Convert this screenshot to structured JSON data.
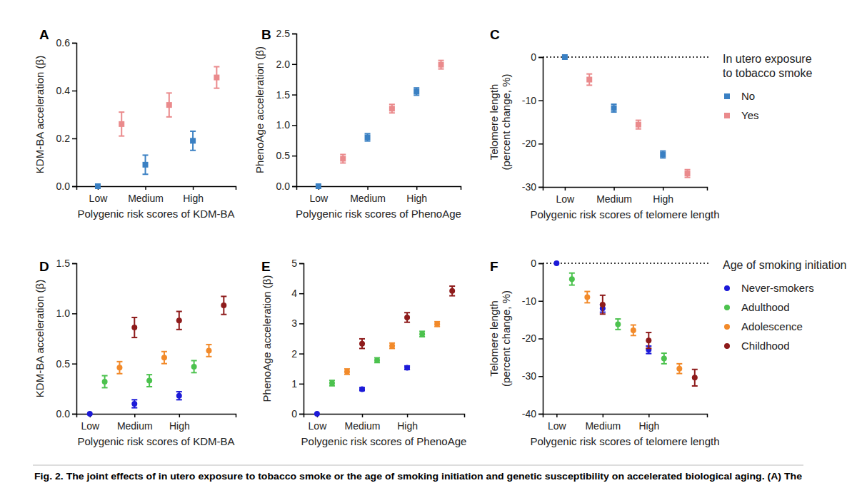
{
  "chart_data": [
    {
      "type": "scatter",
      "title": "A",
      "marker": "square",
      "x_label": "Polygenic risk scores of KDM-BA",
      "y_label": "KDM-BA acceleration (β)",
      "categories": [
        "Low",
        "Medium",
        "High"
      ],
      "series": [
        {
          "color": "#3a80c3",
          "values": [
            0,
            0.09,
            0.19
          ],
          "errors": [
            0,
            0.04,
            0.04
          ]
        },
        {
          "color": "#ea8a8c",
          "values": [
            0.26,
            0.34,
            0.455
          ],
          "errors": [
            0.05,
            0.05,
            0.045
          ]
        }
      ],
      "ylim": [
        0,
        0.6
      ],
      "yticks": [
        {
          "value": 0,
          "label": "0.0"
        },
        {
          "value": 0.2,
          "label": "0.2"
        },
        {
          "value": 0.4,
          "label": "0.4"
        },
        {
          "value": 0.6,
          "label": "0.6"
        }
      ],
      "legend": "none"
    },
    {
      "type": "scatter",
      "title": "B",
      "marker": "square",
      "x_label": "Polygenic risk scores of PhenoAge",
      "y_label": "PhenoAge acceleration (β)",
      "categories": [
        "Low",
        "Medium",
        "High"
      ],
      "series": [
        {
          "color": "#3a80c3",
          "values": [
            0,
            0.8,
            1.55
          ],
          "errors": [
            0,
            0.06,
            0.06
          ]
        },
        {
          "color": "#ea8a8c",
          "values": [
            0.45,
            1.27,
            1.99
          ],
          "errors": [
            0.07,
            0.07,
            0.07
          ]
        }
      ],
      "ylim": [
        0,
        2.5
      ],
      "yticks": [
        {
          "value": 0,
          "label": "0.0"
        },
        {
          "value": 0.5,
          "label": "0.5"
        },
        {
          "value": 1,
          "label": "1.0"
        },
        {
          "value": 1.5,
          "label": "1.5"
        },
        {
          "value": 2,
          "label": "2.0"
        },
        {
          "value": 2.5,
          "label": "2.5"
        }
      ],
      "legend": "none"
    },
    {
      "type": "scatter",
      "title": "C",
      "marker": "square",
      "x_label": "Polygenic risk scores of telomere length",
      "y_label": [
        "Telomere length",
        "(percent change, %)"
      ],
      "categories": [
        "Low",
        "Medium",
        "High"
      ],
      "series": [
        {
          "name": "No",
          "color": "#3a80c3",
          "values": [
            0,
            -11.8,
            -22.5
          ],
          "errors": [
            0,
            0.9,
            0.8
          ]
        },
        {
          "name": "Yes",
          "color": "#ea8a8c",
          "values": [
            -5.2,
            -15.6,
            -26.9
          ],
          "errors": [
            1.3,
            1.0,
            0.9
          ]
        }
      ],
      "ylim": [
        -30,
        0
      ],
      "yticks": [
        0,
        -10,
        -20,
        -30
      ],
      "legend": "right",
      "legend_title": [
        "In utero exposure",
        "to tobacco smoke"
      ]
    },
    {
      "type": "scatter",
      "title": "D",
      "marker": "circle",
      "x_label": "Polygenic risk scores of KDM-BA",
      "y_label": "KDM-BA acceleration (β)",
      "categories": [
        "Low",
        "Medium",
        "High"
      ],
      "series": [
        {
          "color": "#1c1ad8",
          "values": [
            0,
            0.1,
            0.18
          ],
          "errors": [
            0,
            0.04,
            0.04
          ]
        },
        {
          "color": "#4cc24e",
          "values": [
            0.32,
            0.33,
            0.47
          ],
          "errors": [
            0.06,
            0.06,
            0.06
          ]
        },
        {
          "color": "#f28a2a",
          "values": [
            0.46,
            0.56,
            0.63
          ],
          "errors": [
            0.06,
            0.06,
            0.06
          ]
        },
        {
          "color": "#8e1b1b",
          "values": [
            0.86,
            0.93,
            1.08
          ],
          "errors": [
            0.1,
            0.09,
            0.09
          ]
        }
      ],
      "ylim": [
        0,
        1.5
      ],
      "yticks": [
        {
          "value": 0,
          "label": "0.0"
        },
        {
          "value": 0.5,
          "label": "0.5"
        },
        {
          "value": 1,
          "label": "1.0"
        },
        {
          "value": 1.5,
          "label": "1.5"
        }
      ],
      "legend": "none"
    },
    {
      "type": "scatter",
      "title": "E",
      "marker": "circle",
      "x_label": "Polygenic risk scores of PhenoAge",
      "y_label": "PhenoAge acceleration (β)",
      "categories": [
        "Low",
        "Medium",
        "High"
      ],
      "series": [
        {
          "color": "#1c1ad8",
          "values": [
            0,
            0.82,
            1.53
          ],
          "errors": [
            0,
            0.05,
            0.06
          ]
        },
        {
          "color": "#4cc24e",
          "values": [
            1.02,
            1.78,
            2.65
          ],
          "errors": [
            0.09,
            0.08,
            0.09
          ]
        },
        {
          "color": "#f28a2a",
          "values": [
            1.4,
            2.26,
            2.98
          ],
          "errors": [
            0.09,
            0.09,
            0.08
          ]
        },
        {
          "color": "#8e1b1b",
          "values": [
            2.33,
            3.2,
            4.08
          ],
          "errors": [
            0.16,
            0.16,
            0.16
          ]
        }
      ],
      "ylim": [
        0,
        5
      ],
      "yticks": [
        0,
        1,
        2,
        3,
        4,
        5
      ],
      "legend": "none"
    },
    {
      "type": "scatter",
      "title": "F",
      "marker": "circle",
      "x_label": "Polygenic risk scores of telomere length",
      "y_label": [
        "Telomere length",
        "(percent change, %)"
      ],
      "categories": [
        "Low",
        "Medium",
        "High"
      ],
      "series": [
        {
          "name": "Never-smokers",
          "color": "#1c1ad8",
          "values": [
            0,
            -12,
            -23
          ],
          "errors": [
            0,
            1.0,
            1.0
          ]
        },
        {
          "name": "Adulthood",
          "color": "#4cc24e",
          "values": [
            -4.2,
            -16.2,
            -25.3
          ],
          "errors": [
            1.6,
            1.4,
            1.4
          ]
        },
        {
          "name": "Adolescence",
          "color": "#f28a2a",
          "values": [
            -9,
            -17.8,
            -28
          ],
          "errors": [
            1.5,
            1.4,
            1.3
          ]
        },
        {
          "name": "Childhood",
          "color": "#8e1b1b",
          "values": [
            -11,
            -20.5,
            -30.4
          ],
          "errors": [
            2.5,
            2.1,
            2.2
          ]
        }
      ],
      "ylim": [
        -40,
        0
      ],
      "yticks": [
        0,
        -10,
        -20,
        -30,
        -40
      ],
      "legend": "right",
      "legend_title": [
        "Age of smoking initiation"
      ]
    }
  ],
  "caption": "Fig. 2. The joint effects of in utero exposure to tobacco smoke or the age of smoking initiation and genetic susceptibility on accelerated biological aging. (A) The"
}
